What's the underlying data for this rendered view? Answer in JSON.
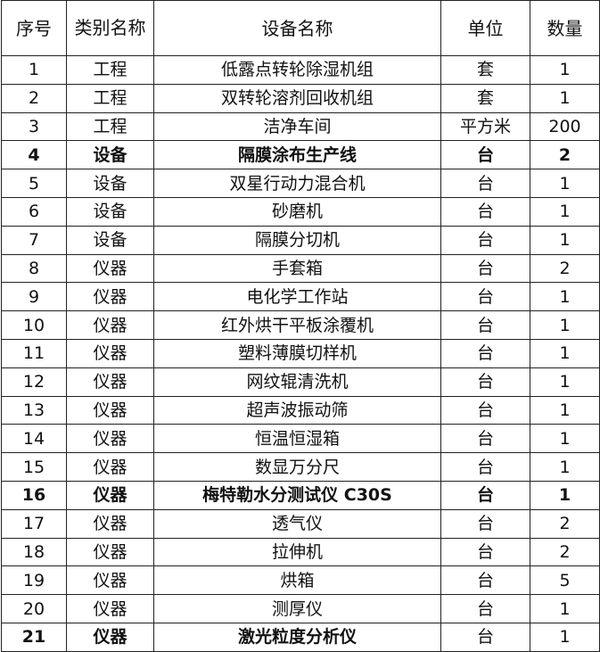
{
  "headers": {
    "no": "序号",
    "category": "类别名称",
    "name": "设备名称",
    "unit": "单位",
    "qty": "数量"
  },
  "rows": [
    {
      "no": "1",
      "category": "工程",
      "name": "低露点转轮除湿机组",
      "unit": "套",
      "qty": "1",
      "bold": false
    },
    {
      "no": "2",
      "category": "工程",
      "name": "双转轮溶剂回收机组",
      "unit": "套",
      "qty": "1",
      "bold": false
    },
    {
      "no": "3",
      "category": "工程",
      "name": "洁净车间",
      "unit": "平方米",
      "qty": "200",
      "bold": false
    },
    {
      "no": "4",
      "category": "设备",
      "name": "隔膜涂布生产线",
      "unit": "台",
      "qty": "2",
      "bold": true
    },
    {
      "no": "5",
      "category": "设备",
      "name": "双星行动力混合机",
      "unit": "台",
      "qty": "1",
      "bold": false
    },
    {
      "no": "6",
      "category": "设备",
      "name": "砂磨机",
      "unit": "台",
      "qty": "1",
      "bold": false
    },
    {
      "no": "7",
      "category": "设备",
      "name": "隔膜分切机",
      "unit": "台",
      "qty": "1",
      "bold": false
    },
    {
      "no": "8",
      "category": "仪器",
      "name": "手套箱",
      "unit": "台",
      "qty": "2",
      "bold": false
    },
    {
      "no": "9",
      "category": "仪器",
      "name": "电化学工作站",
      "unit": "台",
      "qty": "1",
      "bold": false
    },
    {
      "no": "10",
      "category": "仪器",
      "name": "红外烘干平板涂覆机",
      "unit": "台",
      "qty": "1",
      "bold": false
    },
    {
      "no": "11",
      "category": "仪器",
      "name": "塑料薄膜切样机",
      "unit": "台",
      "qty": "1",
      "bold": false
    },
    {
      "no": "12",
      "category": "仪器",
      "name": "网纹辊清洗机",
      "unit": "台",
      "qty": "1",
      "bold": false
    },
    {
      "no": "13",
      "category": "仪器",
      "name": "超声波振动筛",
      "unit": "台",
      "qty": "1",
      "bold": false
    },
    {
      "no": "14",
      "category": "仪器",
      "name": "恒温恒湿箱",
      "unit": "台",
      "qty": "1",
      "bold": false
    },
    {
      "no": "15",
      "category": "仪器",
      "name": "数显万分尺",
      "unit": "台",
      "qty": "1",
      "bold": false
    },
    {
      "no": "16",
      "category": "仪器",
      "name": "梅特勒水分测试仪 C30S",
      "unit": "台",
      "qty": "1",
      "bold": true
    },
    {
      "no": "17",
      "category": "仪器",
      "name": "透气仪",
      "unit": "台",
      "qty": "2",
      "bold": false
    },
    {
      "no": "18",
      "category": "仪器",
      "name": "拉伸机",
      "unit": "台",
      "qty": "2",
      "bold": false
    },
    {
      "no": "19",
      "category": "仪器",
      "name": "烘箱",
      "unit": "台",
      "qty": "5",
      "bold": false
    },
    {
      "no": "20",
      "category": "仪器",
      "name": "测厚仪",
      "unit": "台",
      "qty": "1",
      "bold": false
    },
    {
      "no": "21",
      "category": "仪器",
      "name": "激光粒度分析仪",
      "unit": "台",
      "qty": "1",
      "bold": "partial"
    }
  ]
}
